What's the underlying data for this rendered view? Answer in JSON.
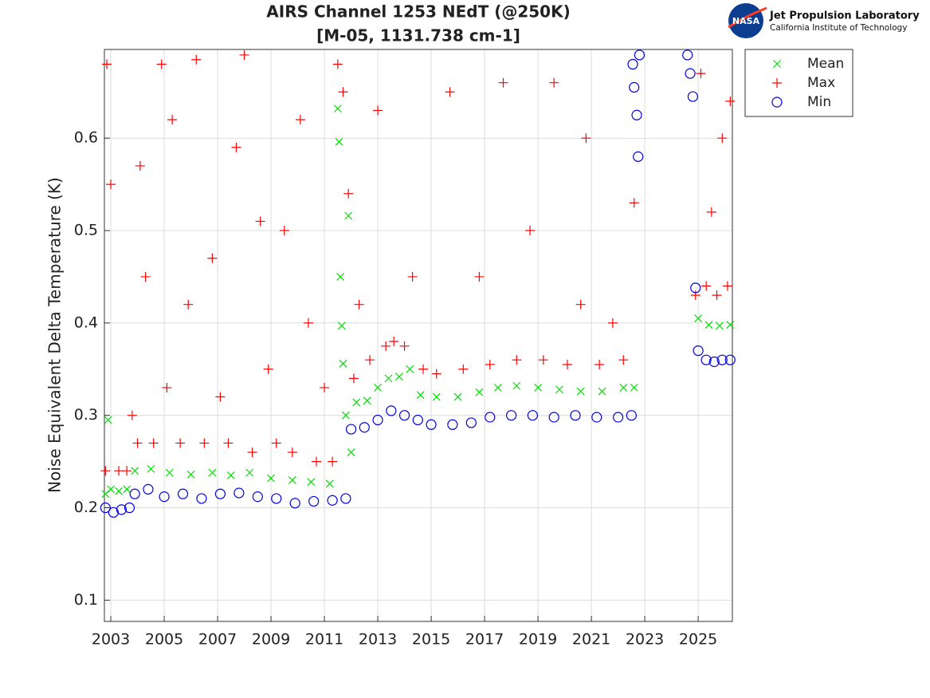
{
  "logo": {
    "badge": "NASA",
    "org": "Jet Propulsion Laboratory",
    "sub": "California Institute of Technology"
  },
  "chart_data": {
    "type": "scatter",
    "title": [
      "AIRS Channel 1253 NEdT (@250K)",
      "[M-05, 1131.738 cm-1]"
    ],
    "y_label": "Noise Equivalent Delta Temperature (K)",
    "xlim": [
      2002.76,
      2026.28
    ],
    "xticks": [
      2003,
      2005,
      2007,
      2009,
      2011,
      2013,
      2015,
      2017,
      2019,
      2021,
      2023,
      2025
    ],
    "ylim": [
      0.077,
      0.696
    ],
    "yticks": [
      0.1,
      0.2,
      0.3,
      0.4,
      0.5,
      0.6
    ],
    "grid": true,
    "legend": "outside-top-right",
    "series": [
      {
        "name": "Mean",
        "color": "#00e000",
        "marker": "x",
        "x": [
          2002.8,
          2002.9,
          2003.0,
          2003.3,
          2003.6,
          2003.9,
          2004.5,
          2005.2,
          2006.0,
          2006.8,
          2007.5,
          2008.2,
          2009.0,
          2009.8,
          2010.5,
          2011.2,
          2011.5,
          2011.55,
          2011.6,
          2011.65,
          2011.7,
          2011.8,
          2011.9,
          2012.0,
          2012.2,
          2012.6,
          2013.0,
          2013.4,
          2013.8,
          2014.2,
          2014.6,
          2015.2,
          2016.0,
          2016.8,
          2017.5,
          2018.2,
          2019.0,
          2019.8,
          2020.6,
          2021.4,
          2022.2,
          2022.6,
          2025.0,
          2025.4,
          2025.8,
          2026.2
        ],
        "values": [
          0.215,
          0.295,
          0.22,
          0.218,
          0.22,
          0.24,
          0.242,
          0.238,
          0.236,
          0.238,
          0.235,
          0.238,
          0.232,
          0.23,
          0.228,
          0.226,
          0.632,
          0.596,
          0.45,
          0.397,
          0.356,
          0.3,
          0.516,
          0.26,
          0.314,
          0.316,
          0.33,
          0.34,
          0.342,
          0.35,
          0.322,
          0.32,
          0.32,
          0.325,
          0.33,
          0.332,
          0.33,
          0.328,
          0.326,
          0.326,
          0.33,
          0.33,
          0.405,
          0.398,
          0.397,
          0.398
        ]
      },
      {
        "name": "Max",
        "color": "#ff0000",
        "marker": "+",
        "x": [
          2002.8,
          2002.85,
          2003.0,
          2003.3,
          2003.6,
          2003.8,
          2004.0,
          2004.1,
          2004.3,
          2004.6,
          2004.9,
          2005.1,
          2005.3,
          2005.6,
          2005.9,
          2006.2,
          2006.5,
          2006.8,
          2007.1,
          2007.4,
          2007.7,
          2008.0,
          2008.3,
          2008.6,
          2008.9,
          2009.2,
          2009.5,
          2009.8,
          2010.1,
          2010.4,
          2010.7,
          2011.0,
          2011.3,
          2011.5,
          2011.7,
          2011.9,
          2012.1,
          2012.3,
          2012.7,
          2013.0,
          2013.3,
          2013.6,
          2014.0,
          2014.3,
          2014.7,
          2015.2,
          2015.7,
          2016.2,
          2016.8,
          2017.2,
          2017.7,
          2018.2,
          2018.7,
          2019.2,
          2019.6,
          2020.1,
          2020.6,
          2020.8,
          2021.3,
          2021.8,
          2022.2,
          2022.6,
          2024.9,
          2025.1,
          2025.3,
          2025.5,
          2025.7,
          2025.9,
          2026.1,
          2026.2
        ],
        "values": [
          0.24,
          0.68,
          0.55,
          0.24,
          0.24,
          0.3,
          0.27,
          0.57,
          0.45,
          0.27,
          0.68,
          0.33,
          0.62,
          0.27,
          0.42,
          0.685,
          0.27,
          0.47,
          0.32,
          0.27,
          0.59,
          0.69,
          0.26,
          0.51,
          0.35,
          0.27,
          0.5,
          0.26,
          0.62,
          0.4,
          0.25,
          0.33,
          0.25,
          0.68,
          0.65,
          0.54,
          0.34,
          0.42,
          0.36,
          0.63,
          0.375,
          0.38,
          0.375,
          0.45,
          0.35,
          0.345,
          0.65,
          0.35,
          0.45,
          0.355,
          0.66,
          0.36,
          0.5,
          0.36,
          0.66,
          0.355,
          0.42,
          0.6,
          0.355,
          0.4,
          0.36,
          0.53,
          0.43,
          0.67,
          0.44,
          0.52,
          0.43,
          0.6,
          0.44,
          0.64
        ]
      },
      {
        "name": "Min",
        "color": "#0000e0",
        "marker": "o",
        "x": [
          2002.8,
          2003.1,
          2003.4,
          2003.7,
          2003.9,
          2004.4,
          2005.0,
          2005.7,
          2006.4,
          2007.1,
          2007.8,
          2008.5,
          2009.2,
          2009.9,
          2010.6,
          2011.3,
          2011.8,
          2012.0,
          2012.5,
          2013.0,
          2013.5,
          2014.0,
          2014.5,
          2015.0,
          2015.8,
          2016.5,
          2017.2,
          2018.0,
          2018.8,
          2019.6,
          2020.4,
          2021.2,
          2022.0,
          2022.5,
          2022.55,
          2022.6,
          2022.7,
          2022.75,
          2022.8,
          2024.6,
          2024.7,
          2024.8,
          2024.9,
          2025.0,
          2025.3,
          2025.6,
          2025.9,
          2026.2
        ],
        "values": [
          0.2,
          0.195,
          0.198,
          0.2,
          0.215,
          0.22,
          0.212,
          0.215,
          0.21,
          0.215,
          0.216,
          0.212,
          0.21,
          0.205,
          0.207,
          0.208,
          0.21,
          0.285,
          0.287,
          0.295,
          0.305,
          0.3,
          0.295,
          0.29,
          0.29,
          0.292,
          0.298,
          0.3,
          0.3,
          0.298,
          0.3,
          0.298,
          0.298,
          0.3,
          0.68,
          0.655,
          0.625,
          0.58,
          0.69,
          0.69,
          0.67,
          0.645,
          0.438,
          0.37,
          0.36,
          0.358,
          0.36,
          0.36
        ]
      }
    ]
  }
}
